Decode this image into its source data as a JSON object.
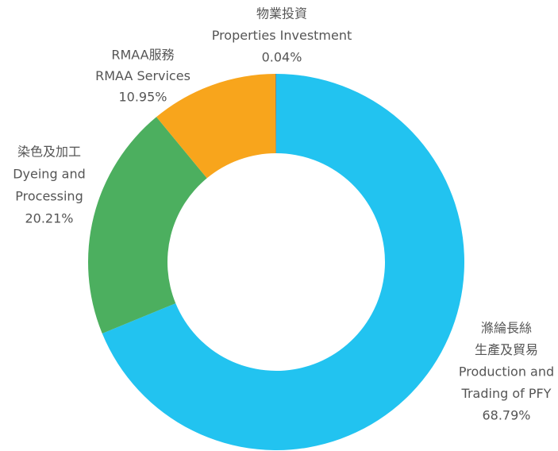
{
  "chart_data": {
    "type": "donut",
    "categories": [
      [
        "滌綸長絲",
        "生產及貿易",
        "Production and",
        "Trading of PFY"
      ],
      [
        "染色及加工",
        "Dyeing and",
        "Processing"
      ],
      [
        "RMAA服務",
        "RMAA Services"
      ],
      [
        "物業投資",
        "Properties Investment"
      ]
    ],
    "values": [
      68.79,
      20.21,
      10.95,
      0.04
    ],
    "value_labels": [
      "68.79%",
      "20.21%",
      "10.95%",
      "0.04%"
    ],
    "colors": [
      "#22c3f0",
      "#4caf5f",
      "#f8a51c",
      "#1f6db3"
    ]
  }
}
